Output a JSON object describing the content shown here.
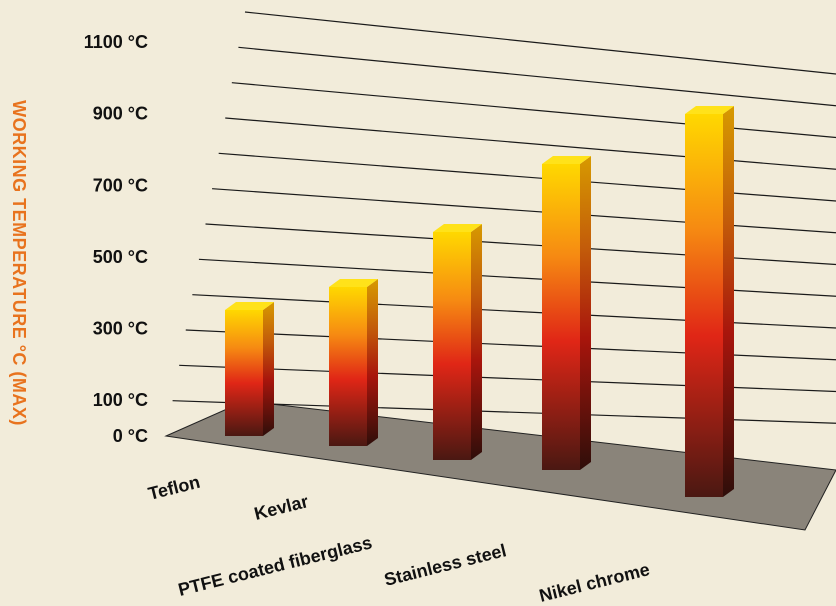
{
  "colors": {
    "background": "#f2ecda",
    "axis_title": "#e8731e",
    "floor": "#8a847a",
    "bar_top": "#ffd800",
    "bar_mid": "#e02616",
    "bar_bottom": "#4a1812"
  },
  "chart_data": {
    "type": "bar",
    "ylabel": "WORKING TEMPERATURE °C (MAX)",
    "y_ticks": [
      "0 °C",
      "100 °C",
      "300 °C",
      "500 °C",
      "700 °C",
      "900 °C",
      "1100 °C"
    ],
    "y_tick_values": [
      0,
      100,
      300,
      500,
      700,
      900,
      1100
    ],
    "ylim": [
      0,
      1200
    ],
    "categories": [
      "Teflon",
      "Kevlar",
      "PTFE coated fiberglass",
      "Stainless steel",
      "Nikel chrome"
    ],
    "values": [
      350,
      450,
      650,
      900,
      1100
    ],
    "grid": true,
    "style": "3d-perspective"
  }
}
